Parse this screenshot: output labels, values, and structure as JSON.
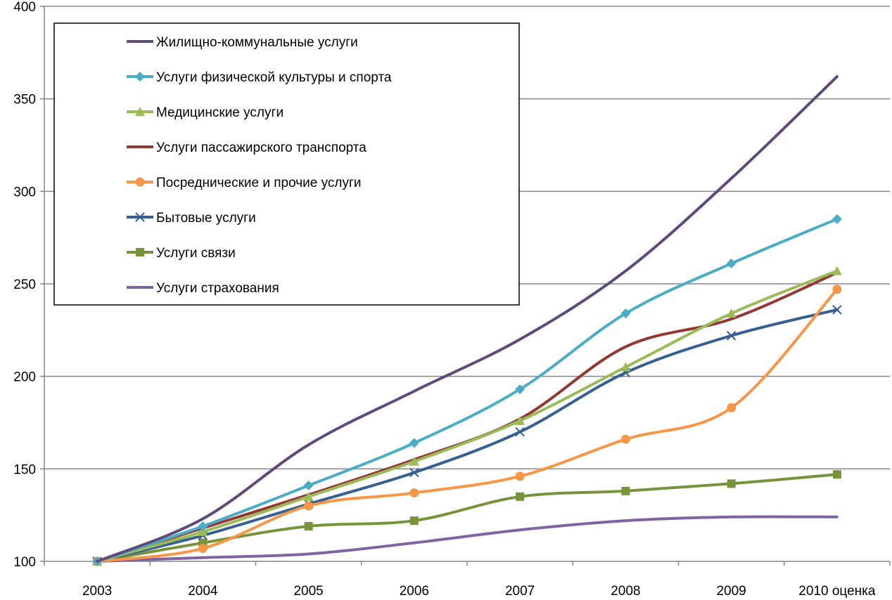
{
  "chart_data": {
    "type": "line",
    "title": "",
    "xlabel": "",
    "ylabel": "",
    "categories": [
      "2003",
      "2004",
      "2005",
      "2006",
      "2007",
      "2008",
      "2009",
      "2010 оценка"
    ],
    "ylim": [
      100,
      400
    ],
    "yticks": [
      100,
      150,
      200,
      250,
      300,
      350,
      400
    ],
    "grid": "horizontal",
    "legend_position": "top-left",
    "smooth": true,
    "series": [
      {
        "name": "Жилищно-коммунальные услуги",
        "color": "#604A7B",
        "marker": "none",
        "values": [
          100,
          123,
          163,
          192,
          220,
          257,
          307,
          362
        ]
      },
      {
        "name": "Услуги физической культуры и спорта",
        "color": "#4BACC6",
        "marker": "diamond",
        "values": [
          100,
          119,
          141,
          164,
          193,
          234,
          261,
          285
        ]
      },
      {
        "name": "Медицинские услуги",
        "color": "#9BBB59",
        "marker": "triangle",
        "values": [
          100,
          116,
          135,
          154,
          176,
          205,
          234,
          257
        ]
      },
      {
        "name": "Услуги пассажирского транспорта",
        "color": "#953735",
        "marker": "none",
        "values": [
          100,
          118,
          136,
          155,
          177,
          216,
          231,
          256
        ]
      },
      {
        "name": "Посреднические и прочие услуги",
        "color": "#F79646",
        "marker": "circle",
        "values": [
          100,
          107,
          130,
          137,
          146,
          166,
          183,
          247
        ]
      },
      {
        "name": "Бытовые услуги",
        "color": "#376092",
        "marker": "x",
        "values": [
          100,
          114,
          131,
          148,
          170,
          202,
          222,
          236
        ]
      },
      {
        "name": "Услуги связи",
        "color": "#77933C",
        "marker": "square",
        "values": [
          100,
          110,
          119,
          122,
          135,
          138,
          142,
          147
        ]
      },
      {
        "name": "Услуги страхования",
        "color": "#8064A2",
        "marker": "none",
        "values": [
          100,
          102,
          104,
          110,
          117,
          122,
          124,
          124
        ]
      }
    ]
  }
}
